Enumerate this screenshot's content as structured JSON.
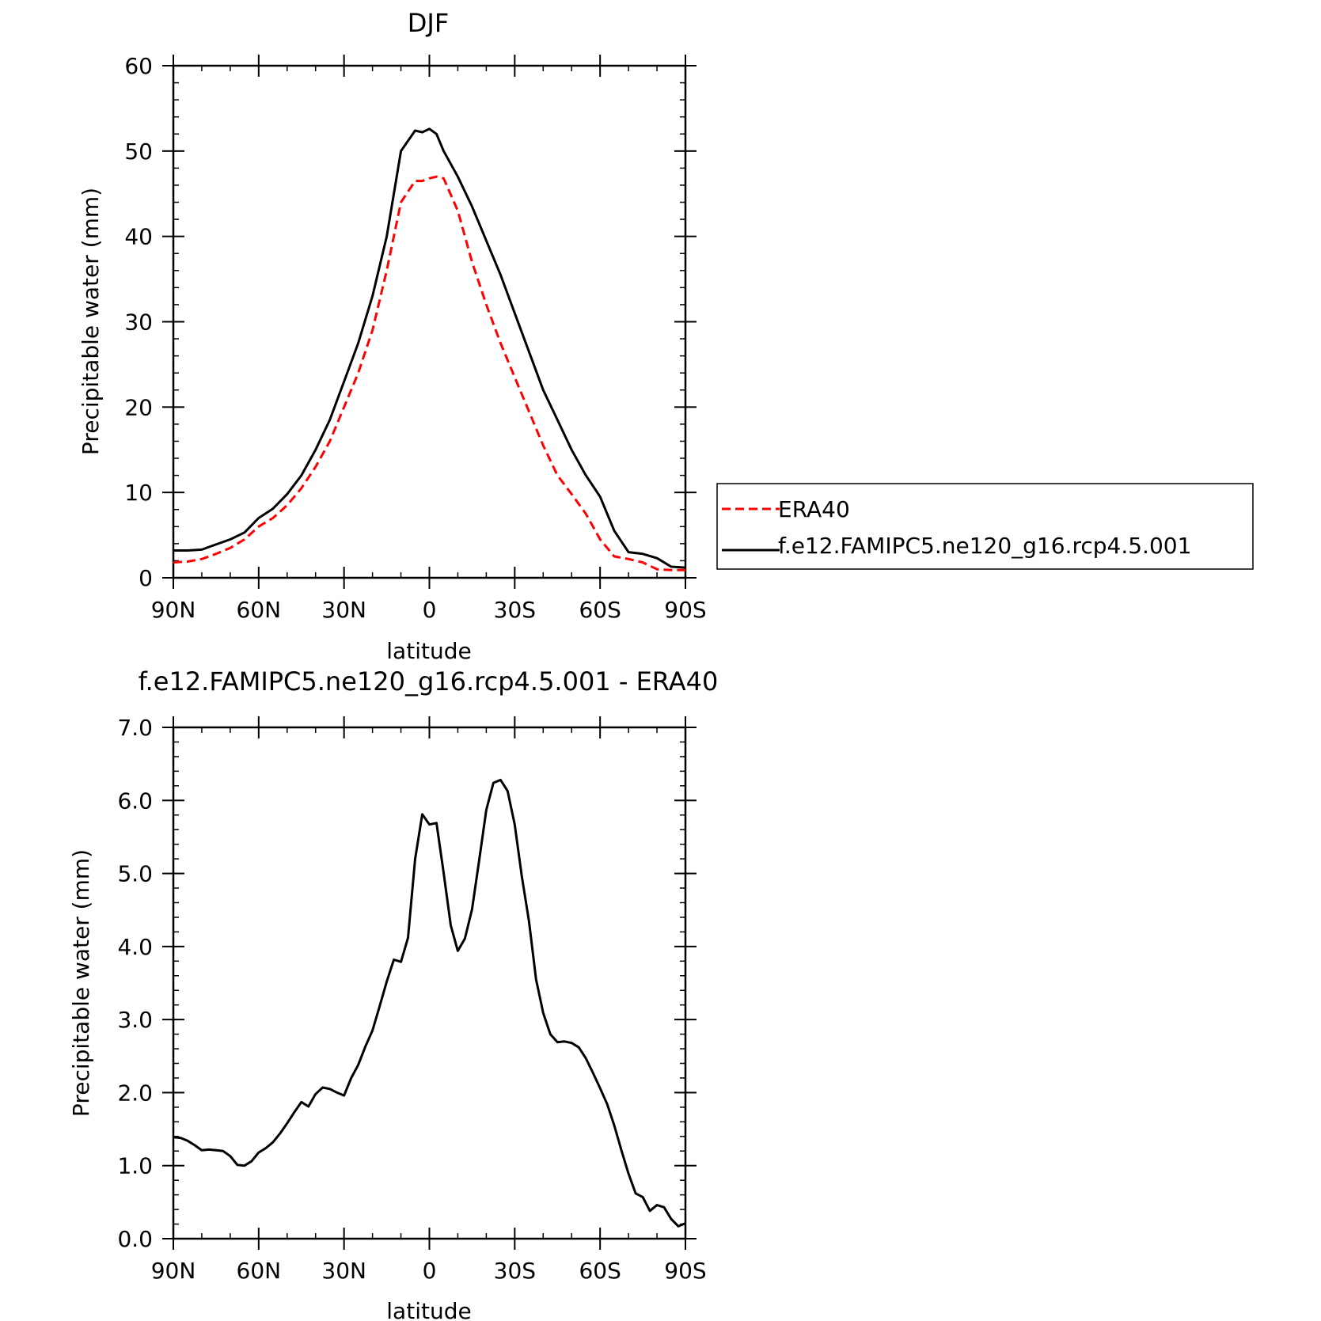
{
  "chart_data": [
    {
      "type": "line",
      "title": "DJF",
      "xlabel": "latitude",
      "ylabel": "Precipitable water (mm)",
      "xlim": [
        90,
        -90
      ],
      "ylim": [
        0,
        60
      ],
      "x_ticks": [
        {
          "value": 90,
          "label": "90N"
        },
        {
          "value": 60,
          "label": "60N"
        },
        {
          "value": 30,
          "label": "30N"
        },
        {
          "value": 0,
          "label": "0"
        },
        {
          "value": -30,
          "label": "30S"
        },
        {
          "value": -60,
          "label": "60S"
        },
        {
          "value": -90,
          "label": "90S"
        }
      ],
      "y_ticks": [
        {
          "value": 0,
          "label": "0"
        },
        {
          "value": 10,
          "label": "10"
        },
        {
          "value": 20,
          "label": "20"
        },
        {
          "value": 30,
          "label": "30"
        },
        {
          "value": 40,
          "label": "40"
        },
        {
          "value": 50,
          "label": "50"
        },
        {
          "value": 60,
          "label": "60"
        }
      ],
      "legend_position": "right",
      "series": [
        {
          "name": "ERA40",
          "color": "#ff0000",
          "dash": "dashed",
          "x": [
            90,
            85,
            80,
            75,
            70,
            65,
            60,
            55,
            50,
            45,
            40,
            35,
            30,
            25,
            20,
            15,
            10,
            5,
            2.5,
            0,
            -2.5,
            -5,
            -10,
            -15,
            -20,
            -25,
            -30,
            -35,
            -40,
            -45,
            -50,
            -55,
            -60,
            -65,
            -70,
            -75,
            -80,
            -85,
            -90
          ],
          "y": [
            1.8,
            1.9,
            2.2,
            2.8,
            3.5,
            4.5,
            6.0,
            7.0,
            8.5,
            10.5,
            13.0,
            16.0,
            20.0,
            24.0,
            29.0,
            36.0,
            44.0,
            46.5,
            46.5,
            46.8,
            47.0,
            46.8,
            43.0,
            37.0,
            32.0,
            27.5,
            23.5,
            19.5,
            15.5,
            12.0,
            9.8,
            7.5,
            4.5,
            2.5,
            2.2,
            1.8,
            1.0,
            0.9,
            0.9
          ]
        },
        {
          "name": "f.e12.FAMIPC5.ne120_g16.rcp4.5.001",
          "color": "#000000",
          "dash": "solid",
          "x": [
            90,
            85,
            80,
            75,
            70,
            65,
            60,
            55,
            50,
            45,
            40,
            35,
            30,
            25,
            20,
            15,
            10,
            5,
            2.5,
            0,
            -2.5,
            -5,
            -10,
            -15,
            -20,
            -25,
            -30,
            -35,
            -40,
            -45,
            -50,
            -55,
            -60,
            -65,
            -70,
            -75,
            -80,
            -85,
            -90
          ],
          "y": [
            3.2,
            3.2,
            3.3,
            3.9,
            4.5,
            5.3,
            7.0,
            8.1,
            9.8,
            12.0,
            15.0,
            18.5,
            23.0,
            27.5,
            33.0,
            40.0,
            50.0,
            52.4,
            52.2,
            52.6,
            52.0,
            50.0,
            47.0,
            43.5,
            39.5,
            35.5,
            31.0,
            26.5,
            22.0,
            18.5,
            15.0,
            12.0,
            9.5,
            5.5,
            3.0,
            2.8,
            2.3,
            1.3,
            1.2
          ]
        }
      ]
    },
    {
      "type": "line",
      "title": "f.e12.FAMIPC5.ne120_g16.rcp4.5.001 - ERA40",
      "xlabel": "latitude",
      "ylabel": "Precipitable water (mm)",
      "xlim": [
        90,
        -90
      ],
      "ylim": [
        0,
        7
      ],
      "x_ticks": [
        {
          "value": 90,
          "label": "90N"
        },
        {
          "value": 60,
          "label": "60N"
        },
        {
          "value": 30,
          "label": "30N"
        },
        {
          "value": 0,
          "label": "0"
        },
        {
          "value": -30,
          "label": "30S"
        },
        {
          "value": -60,
          "label": "60S"
        },
        {
          "value": -90,
          "label": "90S"
        }
      ],
      "y_ticks": [
        {
          "value": 0,
          "label": "0.0"
        },
        {
          "value": 1,
          "label": "1.0"
        },
        {
          "value": 2,
          "label": "2.0"
        },
        {
          "value": 3,
          "label": "3.0"
        },
        {
          "value": 4,
          "label": "4.0"
        },
        {
          "value": 5,
          "label": "5.0"
        },
        {
          "value": 6,
          "label": "6.0"
        },
        {
          "value": 7,
          "label": "7.0"
        }
      ],
      "series": [
        {
          "color": "#000000",
          "dash": "solid",
          "x": [
            90,
            87.5,
            85,
            82.5,
            80,
            77.5,
            75,
            72.5,
            70,
            67.5,
            65,
            62.5,
            60,
            57.5,
            55,
            52.5,
            50,
            47.5,
            45,
            42.5,
            40,
            37.5,
            35,
            32.5,
            30,
            27.5,
            25,
            22.5,
            20,
            17.5,
            15,
            12.5,
            10,
            7.5,
            5,
            2.5,
            0,
            -2.5,
            -5,
            -7.5,
            -10,
            -12.5,
            -15,
            -17.5,
            -20,
            -22.5,
            -25,
            -27.5,
            -30,
            -32.5,
            -35,
            -37.5,
            -40,
            -42.5,
            -45,
            -47.5,
            -50,
            -52.5,
            -55,
            -57.5,
            -60,
            -62.5,
            -65,
            -67.5,
            -70,
            -72.5,
            -75,
            -77.5,
            -80,
            -82.5,
            -85,
            -87.5,
            -90
          ],
          "y": [
            1.39,
            1.38,
            1.34,
            1.28,
            1.21,
            1.22,
            1.21,
            1.2,
            1.13,
            1.01,
            1.0,
            1.06,
            1.18,
            1.24,
            1.32,
            1.44,
            1.58,
            1.73,
            1.87,
            1.81,
            1.98,
            2.07,
            2.05,
            2.0,
            1.96,
            2.2,
            2.38,
            2.63,
            2.85,
            3.18,
            3.52,
            3.82,
            3.79,
            4.12,
            5.2,
            5.81,
            5.67,
            5.69,
            5.01,
            4.29,
            3.94,
            4.11,
            4.51,
            5.18,
            5.87,
            6.24,
            6.28,
            6.13,
            5.67,
            4.96,
            4.35,
            3.55,
            3.09,
            2.8,
            2.69,
            2.7,
            2.68,
            2.62,
            2.47,
            2.27,
            2.06,
            1.84,
            1.55,
            1.21,
            0.89,
            0.62,
            0.57,
            0.38,
            0.46,
            0.43,
            0.27,
            0.17,
            0.21
          ]
        }
      ]
    }
  ]
}
